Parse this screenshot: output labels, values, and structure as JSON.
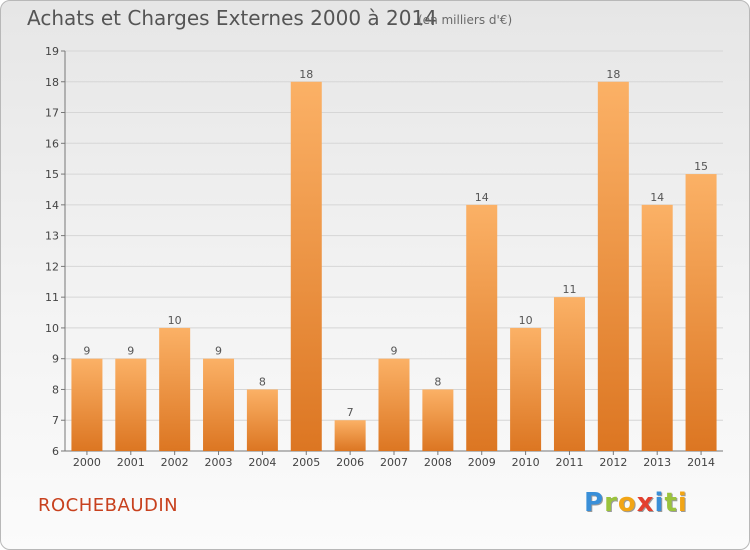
{
  "header": {
    "title": "Achats et Charges Externes 2000 à 2014",
    "subtitle": "(en milliers d'€)"
  },
  "footer": {
    "commune": "ROCHEBAUDIN",
    "logo": {
      "letters": [
        "P",
        "r",
        "o",
        "x",
        "i",
        "t",
        "i"
      ],
      "colors": [
        "#3a8fd8",
        "#9bc33c",
        "#f2a516",
        "#e3402f",
        "#3a8fd8",
        "#9bc33c",
        "#f2a516"
      ]
    }
  },
  "colors": {
    "bar_light": "#fbb166",
    "bar_dark": "#dc7622",
    "commune": "#c8411e"
  },
  "chart_data": {
    "type": "bar",
    "categories": [
      "2000",
      "2001",
      "2002",
      "2003",
      "2004",
      "2005",
      "2006",
      "2007",
      "2008",
      "2009",
      "2010",
      "2011",
      "2012",
      "2013",
      "2014"
    ],
    "values": [
      9,
      9,
      10,
      9,
      8,
      18,
      7,
      9,
      8,
      14,
      10,
      11,
      18,
      14,
      15
    ],
    "title": "Achats et Charges Externes 2000 à 2014",
    "subtitle": "(en milliers d'€)",
    "xlabel": "",
    "ylabel": "",
    "ylim": [
      6,
      19
    ],
    "yticks": [
      6,
      7,
      8,
      9,
      10,
      11,
      12,
      13,
      14,
      15,
      16,
      17,
      18,
      19
    ],
    "grid": true,
    "data_labels": true
  }
}
